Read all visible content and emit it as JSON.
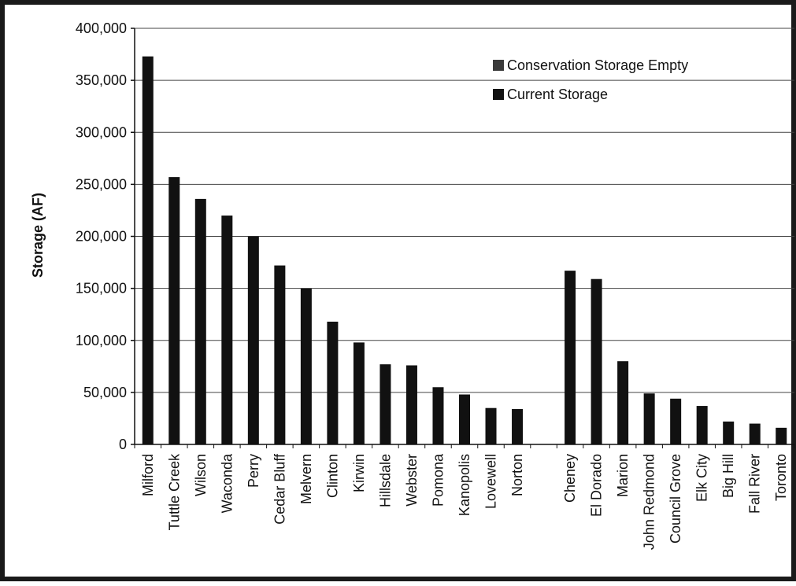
{
  "chart_data": {
    "type": "bar",
    "ylabel": "Storage (AF)",
    "ylim": [
      0,
      400000
    ],
    "yticks": [
      0,
      50000,
      100000,
      150000,
      200000,
      250000,
      300000,
      350000,
      400000
    ],
    "ytick_labels": [
      "0",
      "50,000",
      "100,000",
      "150,000",
      "200,000",
      "250,000",
      "300,000",
      "350,000",
      "400,000"
    ],
    "grid": true,
    "legend_position": "top-right",
    "categories": [
      "Milford",
      "Tuttle Creek",
      "Wilson",
      "Waconda",
      "Perry",
      "Cedar Bluff",
      "Melvern",
      "Clinton",
      "Kirwin",
      "Hillsdale",
      "Webster",
      "Pomona",
      "Kanopolis",
      "Lovewell",
      "Norton",
      "",
      "Cheney",
      "El Dorado",
      "Marion",
      "John Redmond",
      "Council Grove",
      "Elk City",
      "Big Hill",
      "Fall River",
      "Toronto"
    ],
    "series": [
      {
        "name": "Conservation Storage Empty",
        "color": "#3a3a3a",
        "values": [
          0,
          0,
          0,
          0,
          0,
          0,
          0,
          0,
          0,
          0,
          0,
          0,
          0,
          0,
          0,
          null,
          0,
          0,
          0,
          0,
          0,
          0,
          0,
          0,
          0
        ]
      },
      {
        "name": "Current Storage",
        "color": "#111111",
        "values": [
          373000,
          257000,
          236000,
          220000,
          200000,
          172000,
          150000,
          118000,
          98000,
          77000,
          76000,
          55000,
          48000,
          35000,
          34000,
          null,
          167000,
          159000,
          80000,
          49000,
          44000,
          37000,
          22000,
          20000,
          16000
        ]
      }
    ]
  }
}
